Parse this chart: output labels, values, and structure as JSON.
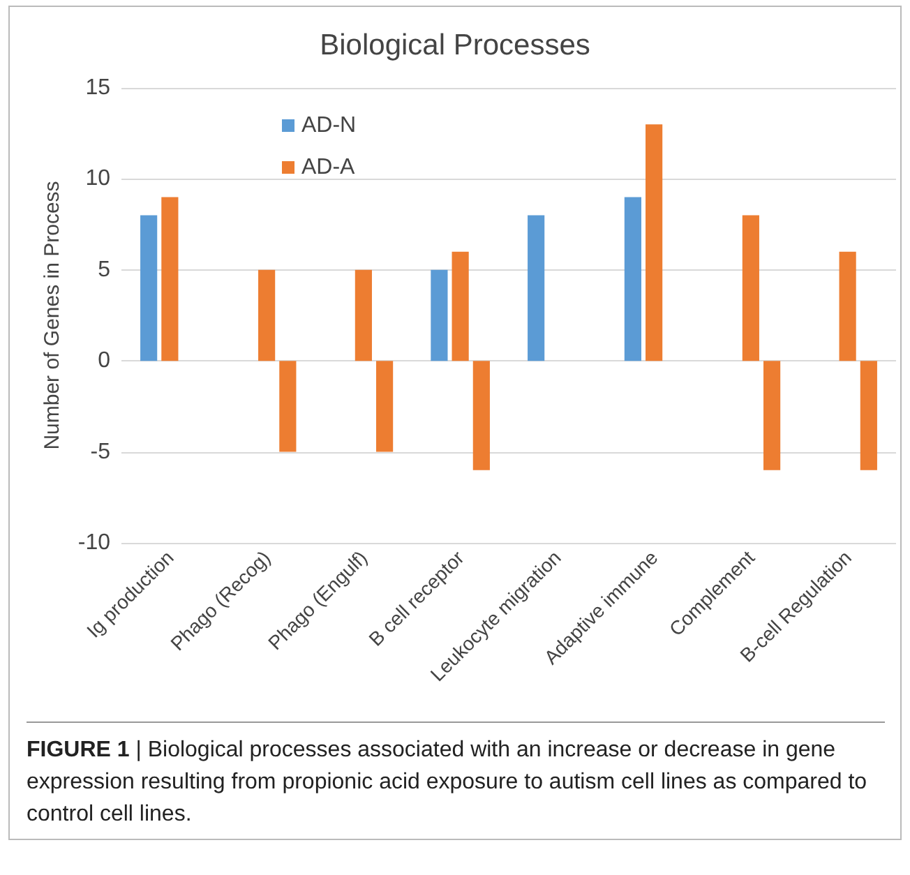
{
  "chart_data": {
    "type": "bar",
    "title": "Biological Processes",
    "ylabel": "Number of Genes in Process",
    "categories": [
      "Ig production",
      "Phago (Recog)",
      "Phago (Engulf)",
      "B cell receptor",
      "Leukocyte migration",
      "Adaptive immune",
      "Complement",
      "B-cell Regulation"
    ],
    "series": [
      {
        "name": "AD-N",
        "color": "#5b9bd5",
        "values": [
          8,
          null,
          null,
          5,
          8,
          9,
          null,
          null
        ]
      },
      {
        "name": "AD-A",
        "color": "#ed7d31",
        "values": [
          9,
          5,
          5,
          6,
          null,
          13,
          8,
          6
        ]
      },
      {
        "color": "#ed7d31",
        "values": [
          null,
          -5,
          -5,
          -6,
          null,
          null,
          -6,
          -6
        ]
      }
    ],
    "ylim": [
      -10,
      15
    ],
    "yticks": [
      -10,
      -5,
      0,
      5,
      10,
      15
    ],
    "grid": "y",
    "legend": "top left",
    "annotations": [
      "FIGURE 1 | Biological processes associated with an increase or decrease in gene expression resulting from propionic acid exposure to autism cell lines as compared to control cell lines."
    ]
  }
}
